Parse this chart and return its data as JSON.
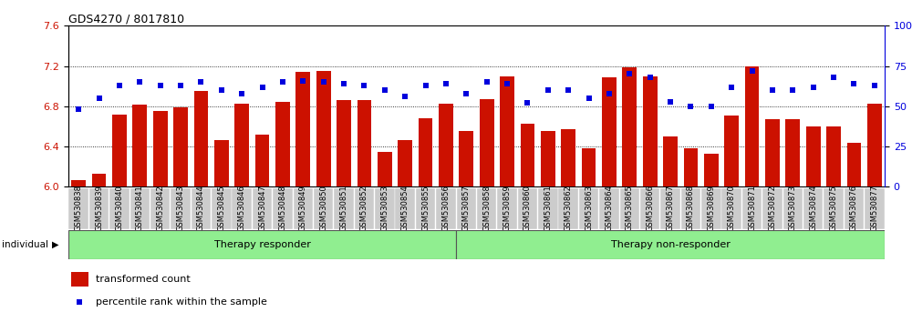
{
  "title": "GDS4270 / 8017810",
  "samples": [
    "GSM530838",
    "GSM530839",
    "GSM530840",
    "GSM530841",
    "GSM530842",
    "GSM530843",
    "GSM530844",
    "GSM530845",
    "GSM530846",
    "GSM530847",
    "GSM530848",
    "GSM530849",
    "GSM530850",
    "GSM530851",
    "GSM530852",
    "GSM530853",
    "GSM530854",
    "GSM530855",
    "GSM530856",
    "GSM530857",
    "GSM530858",
    "GSM530859",
    "GSM530860",
    "GSM530861",
    "GSM530862",
    "GSM530863",
    "GSM530864",
    "GSM530865",
    "GSM530866",
    "GSM530867",
    "GSM530868",
    "GSM530869",
    "GSM530870",
    "GSM530871",
    "GSM530872",
    "GSM530873",
    "GSM530874",
    "GSM530875",
    "GSM530876",
    "GSM530877"
  ],
  "bar_values": [
    6.07,
    6.13,
    6.72,
    6.82,
    6.75,
    6.79,
    6.95,
    6.46,
    6.83,
    6.52,
    6.84,
    7.14,
    7.15,
    6.86,
    6.86,
    6.35,
    6.46,
    6.68,
    6.83,
    6.55,
    6.87,
    7.1,
    6.63,
    6.55,
    6.57,
    6.38,
    7.09,
    7.19,
    7.1,
    6.5,
    6.38,
    6.33,
    6.71,
    7.2,
    6.67,
    6.67,
    6.6,
    6.6,
    6.44,
    6.83
  ],
  "percentile_values": [
    48,
    55,
    63,
    65,
    63,
    63,
    65,
    60,
    58,
    62,
    65,
    66,
    65,
    64,
    63,
    60,
    56,
    63,
    64,
    58,
    65,
    64,
    52,
    60,
    60,
    55,
    58,
    70,
    68,
    53,
    50,
    50,
    62,
    72,
    60,
    60,
    62,
    68,
    64,
    63
  ],
  "group1_count": 19,
  "group2_count": 21,
  "group_labels": [
    "Therapy responder",
    "Therapy non-responder"
  ],
  "ylim_left": [
    6.0,
    7.6
  ],
  "ylim_right": [
    0,
    100
  ],
  "yticks_left": [
    6.0,
    6.4,
    6.8,
    7.2,
    7.6
  ],
  "yticks_right": [
    0,
    25,
    50,
    75,
    100
  ],
  "bar_color": "#cc1100",
  "dot_color": "#0000dd",
  "grid_color": "#000000",
  "bg_color": "#ffffff",
  "tick_bg": "#cccccc",
  "group_bg": "#90ee90",
  "individual_label": "individual",
  "legend_bar_label": "transformed count",
  "legend_dot_label": "percentile rank within the sample",
  "title_fontsize": 9,
  "tick_fontsize": 6,
  "group_fontsize": 8,
  "legend_fontsize": 8
}
